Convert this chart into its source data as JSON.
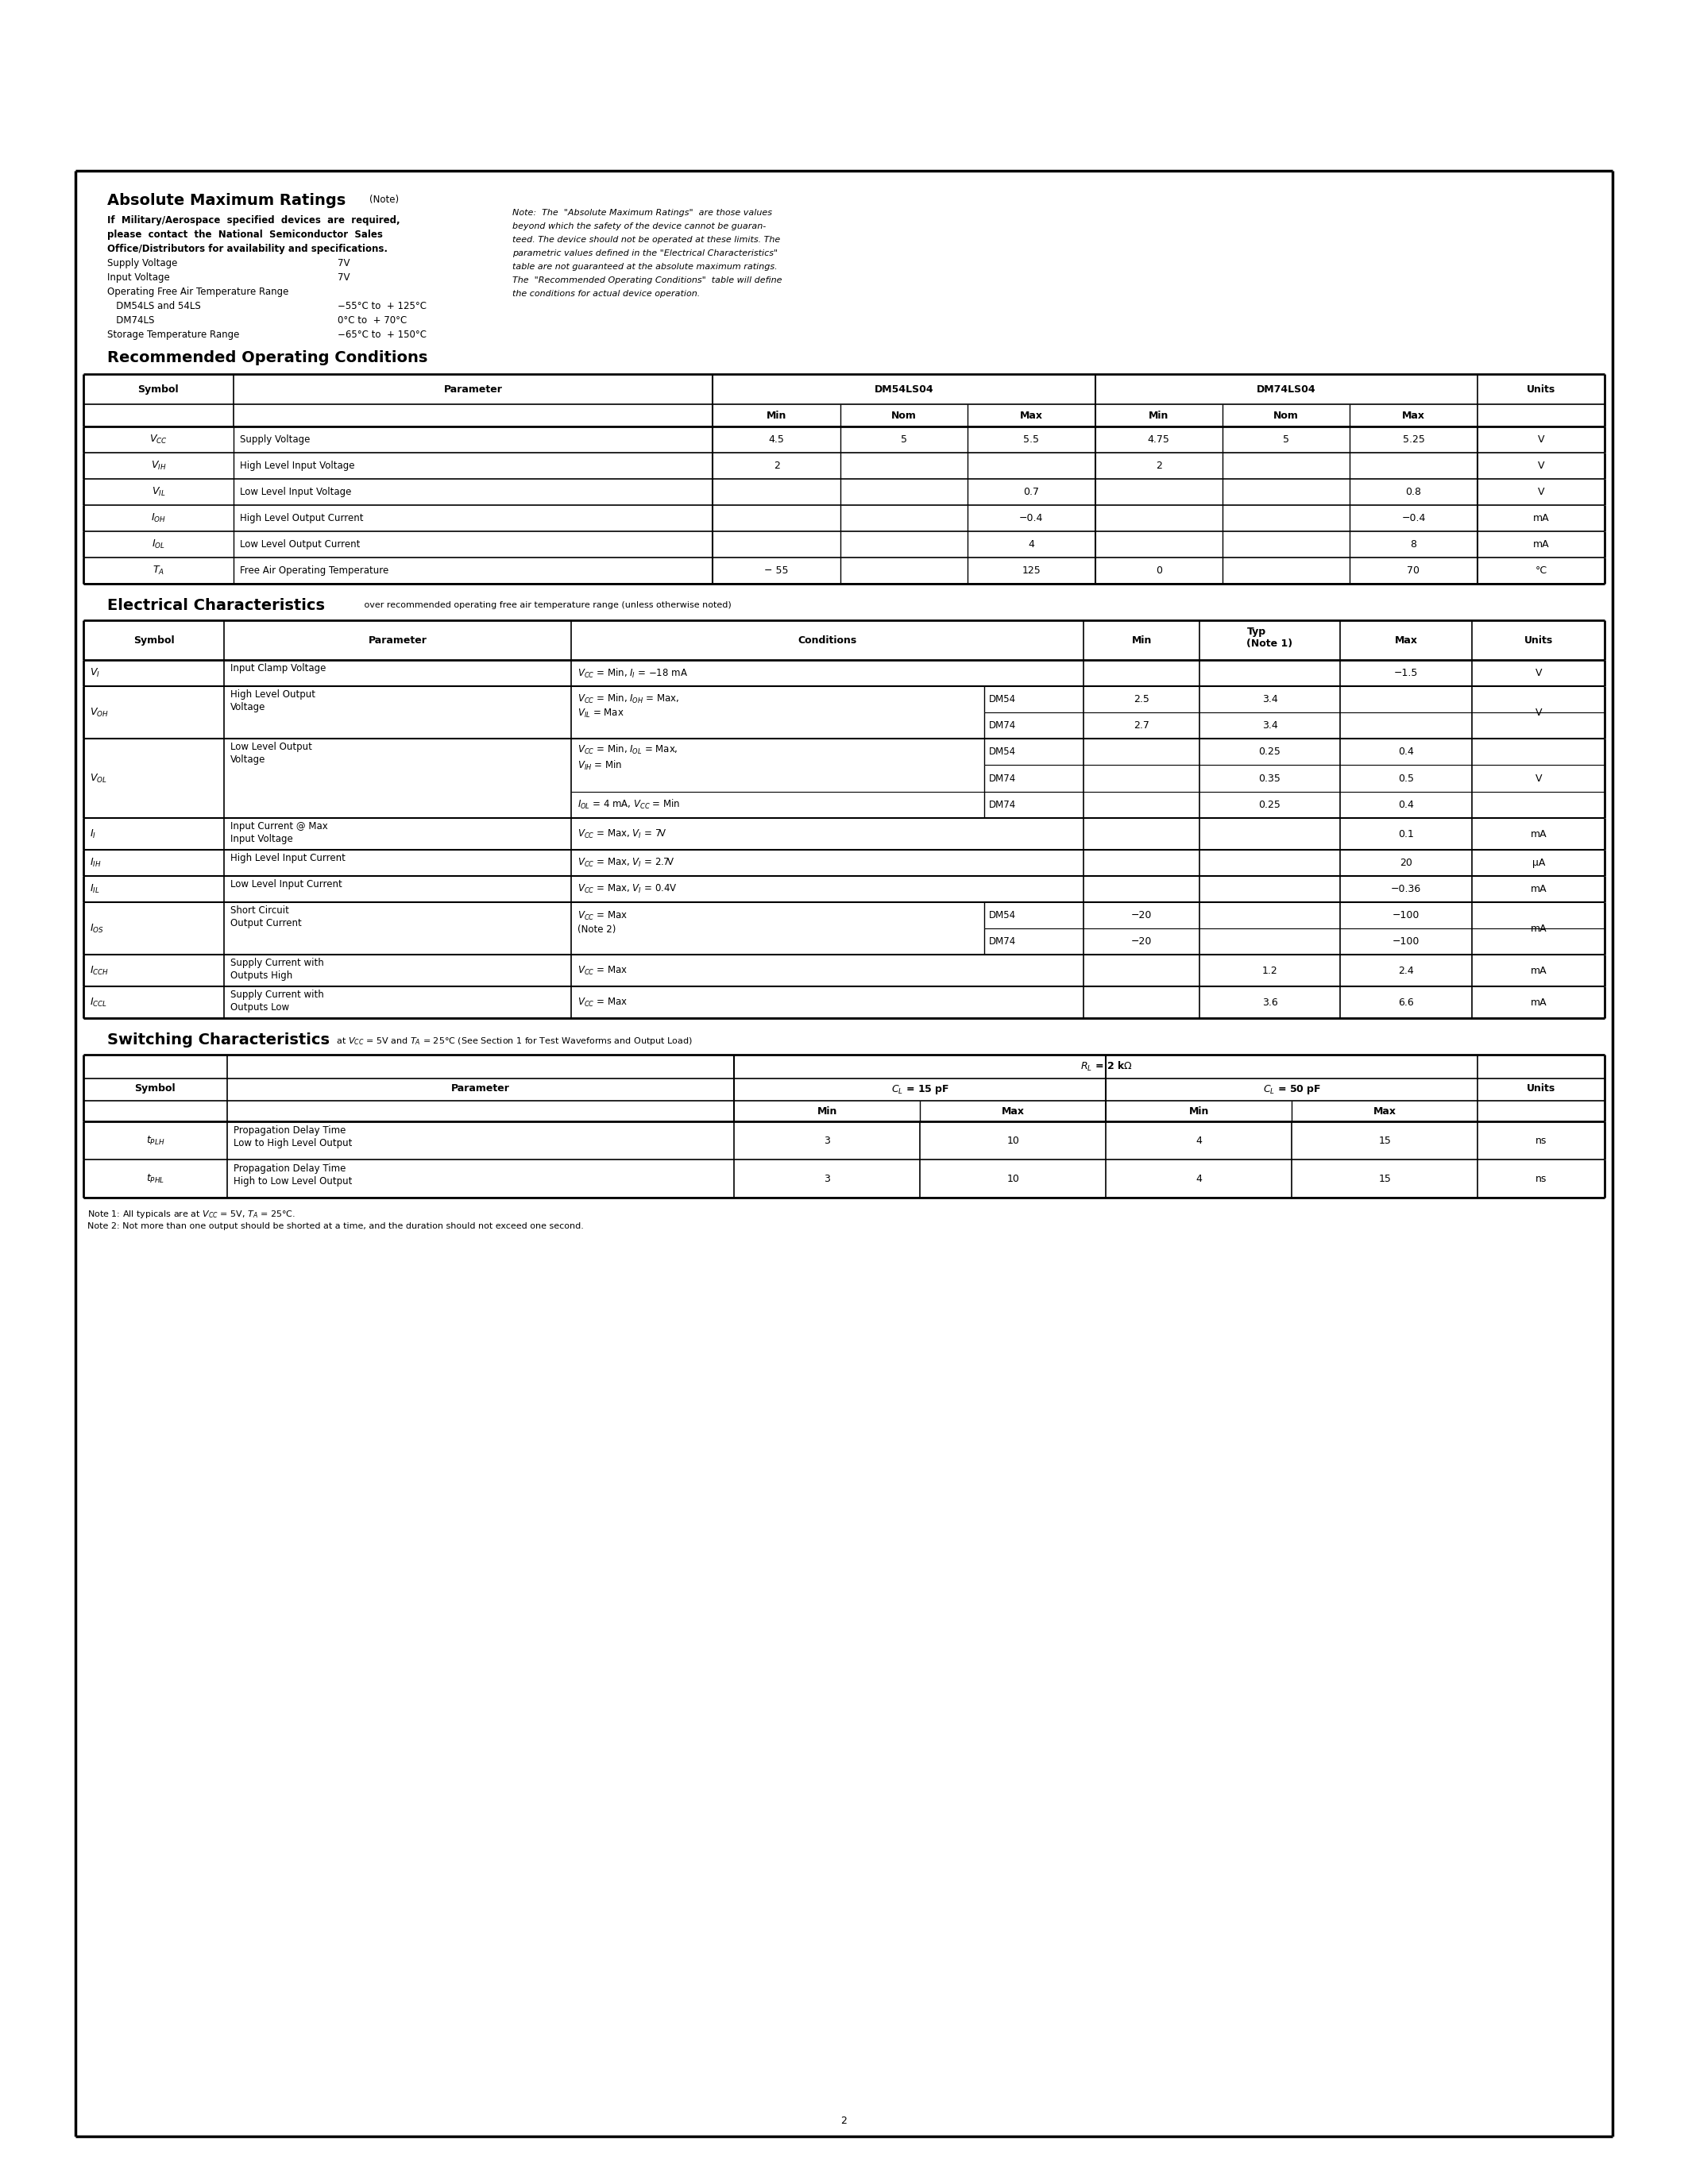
{
  "page_bg": "#ffffff",
  "abs_max": {
    "title_bold": "Absolute Maximum Ratings",
    "title_note": "(Note)",
    "left_items": [
      {
        "text": "If  Military/Aerospace  specified  devices  are  required,",
        "bold": true,
        "value": ""
      },
      {
        "text": "please  contact  the  National  Semiconductor  Sales",
        "bold": true,
        "value": ""
      },
      {
        "text": "Office/Distributors for availability and specifications.",
        "bold": true,
        "value": ""
      },
      {
        "text": "Supply Voltage",
        "bold": false,
        "value": "7V"
      },
      {
        "text": "Input Voltage",
        "bold": false,
        "value": "7V"
      },
      {
        "text": "Operating Free Air Temperature Range",
        "bold": false,
        "value": ""
      },
      {
        "text": "   DM54LS and 54LS",
        "bold": false,
        "value": "−55°C to  + 125°C"
      },
      {
        "text": "   DM74LS",
        "bold": false,
        "value": "0°C to  + 70°C"
      },
      {
        "text": "Storage Temperature Range",
        "bold": false,
        "value": "−65°C to  + 150°C"
      }
    ],
    "note_lines": [
      "Note:  The  \"Absolute Maximum Ratings\"  are those values",
      "beyond which the safety of the device cannot be guaran-",
      "teed. The device should not be operated at these limits. The",
      "parametric values defined in the \"Electrical Characteristics\"",
      "table are not guaranteed at the absolute maximum ratings.",
      "The  \"Recommended Operating Conditions\"  table will define",
      "the conditions for actual device operation."
    ]
  },
  "rec_op": {
    "title": "Recommended Operating Conditions",
    "col_weights": [
      1.0,
      3.2,
      0.85,
      0.85,
      0.85,
      0.85,
      0.85,
      0.85,
      0.85
    ],
    "rows": [
      [
        "V_{CC}",
        "Supply Voltage",
        "4.5",
        "5",
        "5.5",
        "4.75",
        "5",
        "5.25",
        "V"
      ],
      [
        "V_{IH}",
        "High Level Input Voltage",
        "2",
        "",
        "",
        "2",
        "",
        "",
        "V"
      ],
      [
        "V_{IL}",
        "Low Level Input Voltage",
        "",
        "",
        "0.7",
        "",
        "",
        "0.8",
        "V"
      ],
      [
        "I_{OH}",
        "High Level Output Current",
        "",
        "",
        "−0.4",
        "",
        "",
        "−0.4",
        "mA"
      ],
      [
        "I_{OL}",
        "Low Level Output Current",
        "",
        "",
        "4",
        "",
        "",
        "8",
        "mA"
      ],
      [
        "T_A",
        "Free Air Operating Temperature",
        "− 55",
        "",
        "125",
        "0",
        "",
        "70",
        "°C"
      ]
    ]
  },
  "elec_char": {
    "title_bold": "Electrical Characteristics",
    "title_note": " over recommended operating free air temperature range (unless otherwise noted)",
    "col_weights": [
      0.9,
      2.2,
      2.6,
      0.65,
      0.75,
      0.95,
      0.85,
      0.85
    ],
    "rows": [
      {
        "symbol": "V_I",
        "param": "Input Clamp Voltage",
        "cond1": "V_{CC} = Min, I_I = −18 mA",
        "cond2": "",
        "dm_label": "",
        "min": "",
        "typ": "",
        "max": "−1.5",
        "units": "V",
        "subrows": []
      },
      {
        "symbol": "V_{OH}",
        "param": "High Level Output\nVoltage",
        "cond1": "V_{CC} = Min, I_{OH} = Max,",
        "cond2": "V_{IL} = Max",
        "dm_label": "",
        "min": "",
        "typ": "",
        "max": "",
        "units": "V",
        "subrows": [
          {
            "dm": "DM54",
            "min": "2.5",
            "typ": "3.4",
            "max": ""
          },
          {
            "dm": "DM74",
            "min": "2.7",
            "typ": "3.4",
            "max": ""
          }
        ]
      },
      {
        "symbol": "V_{OL}",
        "param": "Low Level Output\nVoltage",
        "cond1": "V_{CC} = Min, I_{OL} = Max,",
        "cond2": "V_{IH} = Min",
        "cond3": "I_{OL} = 4 mA, V_{CC} = Min",
        "dm_label": "",
        "min": "",
        "typ": "",
        "max": "",
        "units": "V",
        "subrows": [
          {
            "dm": "DM54",
            "min": "",
            "typ": "0.25",
            "max": "0.4",
            "cond_group": 1
          },
          {
            "dm": "DM74",
            "min": "",
            "typ": "0.35",
            "max": "0.5",
            "cond_group": 1
          },
          {
            "dm": "DM74",
            "min": "",
            "typ": "0.25",
            "max": "0.4",
            "cond_group": 2
          }
        ]
      },
      {
        "symbol": "I_I",
        "param": "Input Current @ Max\nInput Voltage",
        "cond1": "V_{CC} = Max, V_I = 7V",
        "cond2": "",
        "dm_label": "",
        "min": "",
        "typ": "",
        "max": "0.1",
        "units": "mA",
        "subrows": []
      },
      {
        "symbol": "I_{IH}",
        "param": "High Level Input Current",
        "cond1": "V_{CC} = Max, V_I = 2.7V",
        "cond2": "",
        "dm_label": "",
        "min": "",
        "typ": "",
        "max": "20",
        "units": "μA",
        "subrows": []
      },
      {
        "symbol": "I_{IL}",
        "param": "Low Level Input Current",
        "cond1": "V_{CC} = Max, V_I = 0.4V",
        "cond2": "",
        "dm_label": "",
        "min": "",
        "typ": "",
        "max": "−0.36",
        "units": "mA",
        "subrows": []
      },
      {
        "symbol": "I_{OS}",
        "param": "Short Circuit\nOutput Current",
        "cond1": "V_{CC} = Max",
        "cond2": "(Note 2)",
        "dm_label": "",
        "min": "",
        "typ": "",
        "max": "",
        "units": "mA",
        "subrows": [
          {
            "dm": "DM54",
            "min": "−20",
            "typ": "",
            "max": "−100"
          },
          {
            "dm": "DM74",
            "min": "−20",
            "typ": "",
            "max": "−100"
          }
        ]
      },
      {
        "symbol": "I_{CCH}",
        "param": "Supply Current with\nOutputs High",
        "cond1": "V_{CC} = Max",
        "cond2": "",
        "dm_label": "",
        "min": "",
        "typ": "1.2",
        "max": "2.4",
        "units": "mA",
        "subrows": []
      },
      {
        "symbol": "I_{CCL}",
        "param": "Supply Current with\nOutputs Low",
        "cond1": "V_{CC} = Max",
        "cond2": "",
        "dm_label": "",
        "min": "",
        "typ": "3.6",
        "max": "6.6",
        "units": "mA",
        "subrows": []
      }
    ]
  },
  "switch_char": {
    "title_bold": "Switching Characteristics",
    "title_note": " at V_{CC} = 5V and T_A = 25°C (See Section 1 for Test Waveforms and Output Load)",
    "rows": [
      {
        "symbol": "t_{PLH}",
        "param": "Propagation Delay Time\nLow to High Level Output",
        "cl15min": "3",
        "cl15max": "10",
        "cl50min": "4",
        "cl50max": "15",
        "units": "ns"
      },
      {
        "symbol": "t_{PHL}",
        "param": "Propagation Delay Time\nHigh to Low Level Output",
        "cl15min": "3",
        "cl15max": "10",
        "cl50min": "4",
        "cl50max": "15",
        "units": "ns"
      }
    ],
    "note1": "Note 1: All typicals are at V_{CC} = 5V, T_A = 25°C.",
    "note2": "Note 2: Not more than one output should be shorted at a time, and the duration should not exceed one second."
  }
}
